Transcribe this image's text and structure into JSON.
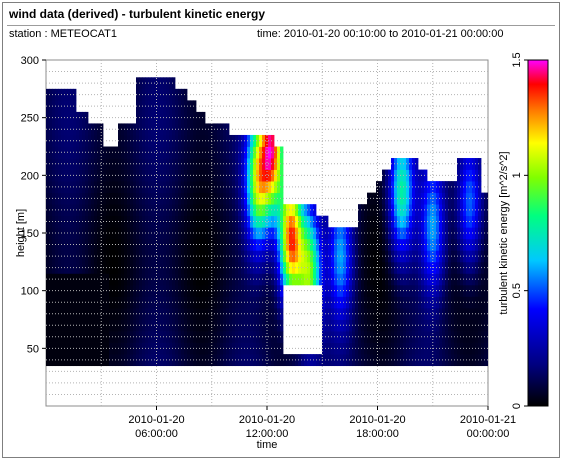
{
  "header": {
    "title": "wind data (derived) - turbulent kinetic energy",
    "station": "station : METEOCAT1",
    "time_range": "time: 2010-01-20 00:10:00 to 2010-01-21 00:00:00"
  },
  "chart_data": {
    "type": "heatmap",
    "xlabel": "time",
    "ylabel": "height [m]",
    "colorbar_label": "turbulent kinetic energy [m^2/s^2]",
    "x_range_hours": [
      0,
      24
    ],
    "ylim": [
      0,
      300
    ],
    "y_ticks": [
      50,
      100,
      150,
      200,
      250,
      300
    ],
    "x_ticks": [
      {
        "hour": 6,
        "line1": "2010-01-20",
        "line2": "06:00:00"
      },
      {
        "hour": 12,
        "line1": "2010-01-20",
        "line2": "12:00:00"
      },
      {
        "hour": 18,
        "line1": "2010-01-20",
        "line2": "18:00:00"
      },
      {
        "hour": 24,
        "line1": "2010-01-21",
        "line2": "00:00:00"
      }
    ],
    "colorbar_range": [
      0,
      1.5
    ],
    "colorbar_ticks": [
      0,
      0.5,
      1,
      1.5
    ],
    "grid": true,
    "data_bottom_height": 35,
    "top_height_by_hour": [
      [
        0.0,
        275
      ],
      [
        1.0,
        275
      ],
      [
        1.7,
        255
      ],
      [
        2.2,
        245
      ],
      [
        3.1,
        225
      ],
      [
        3.9,
        245
      ],
      [
        4.9,
        285
      ],
      [
        6.0,
        285
      ],
      [
        7.0,
        275
      ],
      [
        7.6,
        265
      ],
      [
        8.2,
        255
      ],
      [
        8.7,
        245
      ],
      [
        9.4,
        240
      ],
      [
        10.0,
        235
      ],
      [
        11.5,
        235
      ],
      [
        12.3,
        225
      ],
      [
        12.9,
        175
      ],
      [
        14.0,
        175
      ],
      [
        14.6,
        160
      ],
      [
        15.3,
        155
      ],
      [
        16.7,
        155
      ],
      [
        17.0,
        175
      ],
      [
        17.5,
        185
      ],
      [
        17.9,
        195
      ],
      [
        18.3,
        205
      ],
      [
        18.7,
        215
      ],
      [
        19.8,
        215
      ],
      [
        20.2,
        205
      ],
      [
        20.7,
        195
      ],
      [
        22.0,
        195
      ],
      [
        22.3,
        215
      ],
      [
        23.3,
        215
      ],
      [
        23.6,
        185
      ],
      [
        24.0,
        185
      ]
    ],
    "low_gap": {
      "hours": [
        12.8,
        15.0
      ],
      "heights": [
        45,
        105
      ]
    },
    "tke_features": [
      {
        "hour": 11.5,
        "height": 195,
        "value": 0.9
      },
      {
        "hour": 12.3,
        "height": 225,
        "value": 1.2
      },
      {
        "hour": 13.3,
        "height": 145,
        "value": 1.3
      },
      {
        "hour": 14.3,
        "height": 115,
        "value": 0.9
      },
      {
        "hour": 16.0,
        "height": 130,
        "value": 0.5
      },
      {
        "hour": 19.3,
        "height": 185,
        "value": 0.7
      },
      {
        "hour": 21.0,
        "height": 155,
        "value": 0.5
      },
      {
        "hour": 23.0,
        "height": 175,
        "value": 0.5
      }
    ]
  }
}
